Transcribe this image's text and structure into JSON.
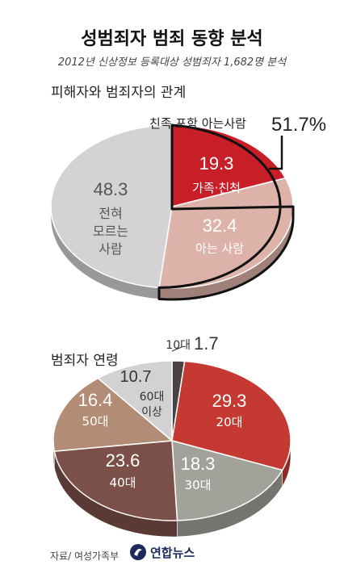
{
  "title": "성범죄자 범죄 동향 분석",
  "subtitle": "2012년 신상정보 등록대상 성범죄자 1,682명 분석",
  "source": "자료/ 여성가족부",
  "logo_text": "연합뉴스",
  "chart_data": [
    {
      "type": "pie",
      "title": "피해자와 범죄자의 관계",
      "unit": "%",
      "slices": [
        {
          "label": "가족·친척",
          "value": 19.3,
          "color": "#c81e27"
        },
        {
          "label": "아는 사람",
          "value": 32.4,
          "color": "#ddb3a9"
        },
        {
          "label": "전혀 모르는 사람",
          "value": 48.3,
          "color": "#d3d3d3"
        }
      ],
      "callout": {
        "label": "친족 포함 아는사람",
        "value": "51.7%"
      }
    },
    {
      "type": "pie",
      "title": "범죄자 연령",
      "unit": "%",
      "slices": [
        {
          "label": "10대",
          "value": 1.7,
          "color": "#4a4246"
        },
        {
          "label": "20대",
          "value": 29.3,
          "color": "#c43a33"
        },
        {
          "label": "30대",
          "value": 18.3,
          "color": "#a3a29a"
        },
        {
          "label": "40대",
          "value": 23.6,
          "color": "#7b5048"
        },
        {
          "label": "50대",
          "value": 16.4,
          "color": "#b28c74"
        },
        {
          "label": "60대 이상",
          "value": 10.7,
          "color": "#d2d2d2"
        }
      ]
    }
  ]
}
